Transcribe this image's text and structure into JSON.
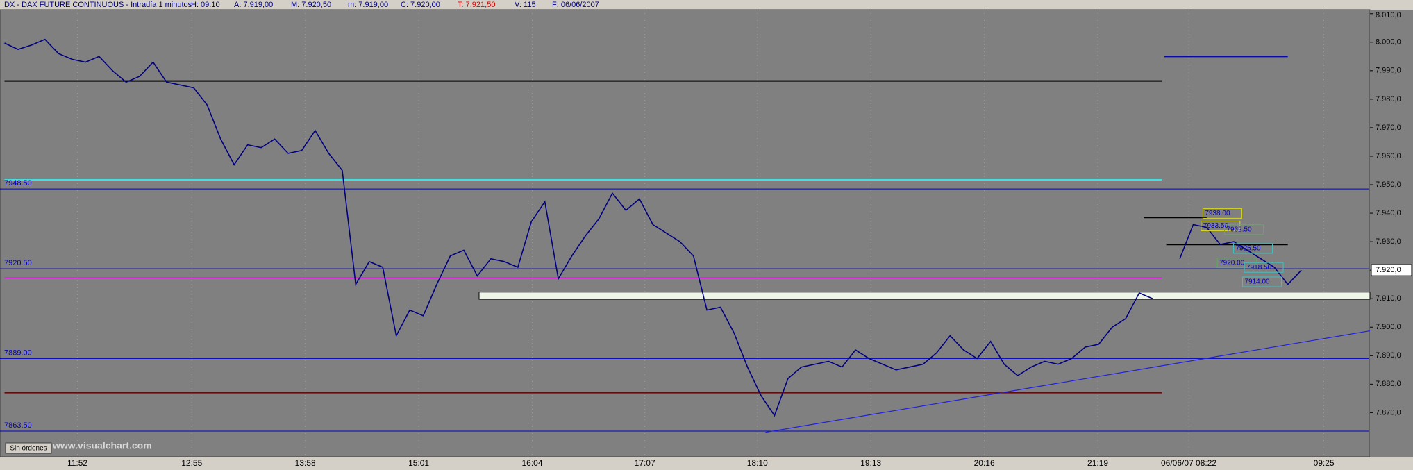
{
  "header": {
    "symbol": "DX - DAX FUTURE CONTINUOUS - Intradía 1 minutos",
    "fields": [
      "H: 09:10",
      "A: 7.919,00",
      "M: 7.920,50",
      "m: 7.919,00",
      "C: 7.920,00",
      "T: 7.921,50",
      "V: 115",
      "F: 06/06/2007"
    ]
  },
  "footer": {
    "button": "Sin órdenes",
    "watermark": "www.visualchart.com"
  },
  "chart_data": {
    "type": "line",
    "color": "#000080",
    "values": [
      7999.7,
      7997.5,
      7999,
      8001,
      7996,
      7994,
      7993,
      7995,
      7990,
      7986,
      7988,
      7993,
      7986,
      7985,
      7984,
      7978,
      7966,
      7957,
      7964,
      7963,
      7966,
      7961,
      7962,
      7969,
      7961,
      7955,
      7915,
      7923,
      7921,
      7897,
      7906,
      7904,
      7915,
      7925,
      7927,
      7918,
      7924,
      7923,
      7921,
      7937,
      7944,
      7917,
      7925,
      7932,
      7938,
      7947,
      7941,
      7945,
      7936,
      7933,
      7930,
      7925,
      7906,
      7907,
      7898,
      7886,
      7876,
      7869,
      7882,
      7886,
      7887,
      7888,
      7886,
      7892,
      7889,
      7887,
      7885,
      7886,
      7887,
      7891,
      7897,
      7892,
      7889,
      7895,
      7887,
      7883,
      7886,
      7888,
      7887,
      7889,
      7893,
      7894,
      7900,
      7903,
      7912,
      7910,
      null,
      7924,
      7936,
      7935,
      7929,
      7930,
      7927,
      7924,
      7921,
      7915,
      7920
    ],
    "x_tick_labels": [
      "11:52",
      "12:55",
      "13:58",
      "15:01",
      "16:04",
      "17:07",
      "18:10",
      "19:13",
      "20:16",
      "21:19",
      "06/06/07 08:22",
      "09:25"
    ],
    "ylim": [
      7854.5,
      8011.4
    ],
    "yticks": [
      {
        "value": 7870,
        "label": "7.870,0"
      },
      {
        "value": 7880,
        "label": "7.880,0"
      },
      {
        "value": 7890,
        "label": "7.890,0"
      },
      {
        "value": 7900,
        "label": "7.900,0"
      },
      {
        "value": 7910,
        "label": "7.910,0"
      },
      {
        "value": 7920,
        "label": "7.920,0"
      },
      {
        "value": 7930,
        "label": "7.930,0"
      },
      {
        "value": 7940,
        "label": "7.940,0"
      },
      {
        "value": 7950,
        "label": "7.950,0"
      },
      {
        "value": 7960,
        "label": "7.960,0"
      },
      {
        "value": 7970,
        "label": "7.970,0"
      },
      {
        "value": 7980,
        "label": "7.980,0"
      },
      {
        "value": 7990,
        "label": "7.990,0"
      },
      {
        "value": 8000,
        "label": "8.000,0"
      },
      {
        "value": 8010,
        "label": "8.010,0"
      }
    ],
    "last_price": {
      "value": 7920,
      "label": "7.920,0"
    },
    "levels": [
      {
        "value": 7986.4,
        "color": "#000000"
      },
      {
        "value": 7951.7,
        "color": "#40e0e0"
      },
      {
        "value": 7948.5,
        "label": "7948.50",
        "color": "#0000c0"
      },
      {
        "value": 7920.5,
        "label": "7920.50",
        "color": "#0000c0"
      },
      {
        "value": 7917.3,
        "color": "#e020e0"
      },
      {
        "value": 7889,
        "label": "7889.00",
        "color": "#0000c0"
      },
      {
        "value": 7877,
        "color": "#800000"
      },
      {
        "value": 7863.5,
        "label": "7863.50",
        "color": "#0000c0"
      },
      {
        "value": 7995,
        "color": "#0000e0"
      },
      {
        "value": 7938.5,
        "color": "#000000"
      },
      {
        "value": 7929,
        "color": "#000000"
      }
    ],
    "zone": {
      "from": 7909.8,
      "to": 7912.3,
      "color": "#eef6e8"
    },
    "trend_line": {
      "start": 7863.1,
      "end": 7898.7,
      "color": "#2020e0"
    },
    "annotations": [
      "7938.00",
      "7933.50",
      "7932.50",
      "7925.50",
      "7920.00",
      "7918.50",
      "7914.00"
    ]
  }
}
